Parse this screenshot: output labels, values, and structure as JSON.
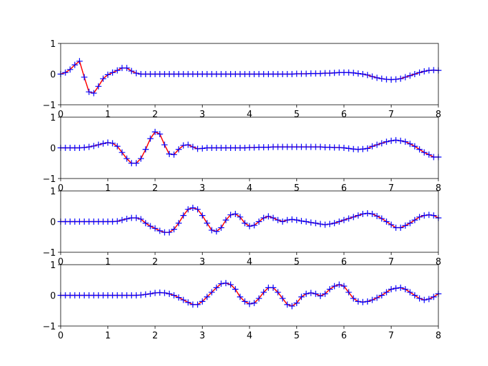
{
  "chart_data": [
    {
      "type": "line",
      "x": [
        0,
        0.1,
        0.2,
        0.3,
        0.4,
        0.5,
        0.6,
        0.7,
        0.8,
        0.9,
        1,
        1.1,
        1.2,
        1.3,
        1.4,
        1.5,
        1.6,
        1.7,
        1.8,
        1.9,
        2,
        2.1,
        2.2,
        2.3,
        2.4,
        2.5,
        2.6,
        2.7,
        2.8,
        2.9,
        3,
        3.1,
        3.2,
        3.3,
        3.4,
        3.5,
        3.6,
        3.7,
        3.8,
        3.9,
        4,
        4.1,
        4.2,
        4.3,
        4.4,
        4.5,
        4.6,
        4.7,
        4.8,
        4.9,
        5,
        5.1,
        5.2,
        5.3,
        5.4,
        5.5,
        5.6,
        5.7,
        5.8,
        5.9,
        6,
        6.1,
        6.2,
        6.3,
        6.4,
        6.5,
        6.6,
        6.7,
        6.8,
        6.9,
        7,
        7.1,
        7.2,
        7.3,
        7.4,
        7.5,
        7.6,
        7.7,
        7.8,
        7.9,
        8
      ],
      "series": [
        {
          "color": "red",
          "marker_color": "blue",
          "marker": "+",
          "values": [
            0,
            0.05,
            0.15,
            0.3,
            0.42,
            -0.1,
            -0.58,
            -0.62,
            -0.4,
            -0.15,
            -0.02,
            0.05,
            0.12,
            0.2,
            0.2,
            0.1,
            0.03,
            0,
            0,
            0,
            0,
            0,
            0,
            0,
            0,
            0,
            0,
            0,
            0,
            0,
            0,
            0,
            0,
            0,
            0,
            0,
            0,
            0,
            0,
            0,
            0,
            0,
            0,
            0,
            0,
            0,
            0,
            0,
            0,
            0,
            0.01,
            0.01,
            0.01,
            0.02,
            0.02,
            0.02,
            0.03,
            0.03,
            0.04,
            0.05,
            0.05,
            0.05,
            0.04,
            0.02,
            0,
            -0.03,
            -0.08,
            -0.12,
            -0.15,
            -0.17,
            -0.18,
            -0.17,
            -0.15,
            -0.1,
            -0.05,
            0,
            0.05,
            0.09,
            0.12,
            0.13,
            0.12
          ]
        }
      ],
      "xlim": [
        0,
        8
      ],
      "ylim": [
        -1,
        1
      ],
      "xticks": [
        0,
        1,
        2,
        3,
        4,
        5,
        6,
        7,
        8
      ],
      "yticks": [
        {
          "value": -1,
          "label": "−1"
        },
        0,
        1
      ]
    },
    {
      "type": "line",
      "x": [
        0,
        0.1,
        0.2,
        0.3,
        0.4,
        0.5,
        0.6,
        0.7,
        0.8,
        0.9,
        1,
        1.1,
        1.2,
        1.3,
        1.4,
        1.5,
        1.6,
        1.7,
        1.8,
        1.9,
        2,
        2.1,
        2.2,
        2.3,
        2.4,
        2.5,
        2.6,
        2.7,
        2.8,
        2.9,
        3,
        3.1,
        3.2,
        3.3,
        3.4,
        3.5,
        3.6,
        3.7,
        3.8,
        3.9,
        4,
        4.1,
        4.2,
        4.3,
        4.4,
        4.5,
        4.6,
        4.7,
        4.8,
        4.9,
        5,
        5.1,
        5.2,
        5.3,
        5.4,
        5.5,
        5.6,
        5.7,
        5.8,
        5.9,
        6,
        6.1,
        6.2,
        6.3,
        6.4,
        6.5,
        6.6,
        6.7,
        6.8,
        6.9,
        7,
        7.1,
        7.2,
        7.3,
        7.4,
        7.5,
        7.6,
        7.7,
        7.8,
        7.9,
        8
      ],
      "series": [
        {
          "color": "red",
          "marker_color": "blue",
          "marker": "+",
          "values": [
            0,
            0,
            0,
            0,
            0,
            0.01,
            0.03,
            0.06,
            0.1,
            0.14,
            0.17,
            0.15,
            0.05,
            -0.15,
            -0.35,
            -0.5,
            -0.5,
            -0.35,
            -0.05,
            0.3,
            0.52,
            0.45,
            0.1,
            -0.2,
            -0.22,
            -0.05,
            0.08,
            0.1,
            0.03,
            -0.03,
            -0.02,
            0,
            0,
            0,
            0,
            0,
            0,
            0,
            0,
            0,
            0.01,
            0.01,
            0.02,
            0.02,
            0.02,
            0.03,
            0.03,
            0.03,
            0.03,
            0.03,
            0.03,
            0.03,
            0.03,
            0.03,
            0.03,
            0.03,
            0.02,
            0.02,
            0.01,
            0.01,
            0,
            -0.02,
            -0.04,
            -0.05,
            -0.04,
            -0.02,
            0.05,
            0.1,
            0.15,
            0.2,
            0.23,
            0.25,
            0.23,
            0.2,
            0.13,
            0.05,
            -0.05,
            -0.15,
            -0.22,
            -0.3,
            -0.3
          ]
        }
      ],
      "xlim": [
        0,
        8
      ],
      "ylim": [
        -1,
        1
      ],
      "xticks": [
        0,
        1,
        2,
        3,
        4,
        5,
        6,
        7,
        8
      ],
      "yticks": [
        {
          "value": -1,
          "label": "−1"
        },
        0,
        1
      ]
    },
    {
      "type": "line",
      "x": [
        0,
        0.1,
        0.2,
        0.3,
        0.4,
        0.5,
        0.6,
        0.7,
        0.8,
        0.9,
        1,
        1.1,
        1.2,
        1.3,
        1.4,
        1.5,
        1.6,
        1.7,
        1.8,
        1.9,
        2,
        2.1,
        2.2,
        2.3,
        2.4,
        2.5,
        2.6,
        2.7,
        2.8,
        2.9,
        3,
        3.1,
        3.2,
        3.3,
        3.4,
        3.5,
        3.6,
        3.7,
        3.8,
        3.9,
        4,
        4.1,
        4.2,
        4.3,
        4.4,
        4.5,
        4.6,
        4.7,
        4.8,
        4.9,
        5,
        5.1,
        5.2,
        5.3,
        5.4,
        5.5,
        5.6,
        5.7,
        5.8,
        5.9,
        6,
        6.1,
        6.2,
        6.3,
        6.4,
        6.5,
        6.6,
        6.7,
        6.8,
        6.9,
        7,
        7.1,
        7.2,
        7.3,
        7.4,
        7.5,
        7.6,
        7.7,
        7.8,
        7.9,
        8
      ],
      "series": [
        {
          "color": "red",
          "marker_color": "blue",
          "marker": "+",
          "values": [
            0,
            0,
            0,
            0,
            0,
            0,
            0,
            0,
            0,
            0,
            0,
            0,
            0.01,
            0.05,
            0.09,
            0.12,
            0.12,
            0.08,
            -0.05,
            -0.15,
            -0.22,
            -0.3,
            -0.35,
            -0.35,
            -0.25,
            -0.05,
            0.2,
            0.4,
            0.45,
            0.4,
            0.2,
            -0.05,
            -0.28,
            -0.32,
            -0.2,
            0.05,
            0.22,
            0.25,
            0.15,
            -0.05,
            -0.15,
            -0.12,
            0,
            0.12,
            0.17,
            0.12,
            0.05,
            0,
            0.05,
            0.07,
            0.05,
            0.02,
            0,
            -0.03,
            -0.05,
            -0.08,
            -0.1,
            -0.08,
            -0.05,
            0,
            0.05,
            0.1,
            0.15,
            0.2,
            0.25,
            0.27,
            0.25,
            0.18,
            0.1,
            0,
            -0.1,
            -0.2,
            -0.2,
            -0.13,
            -0.05,
            0.05,
            0.15,
            0.2,
            0.22,
            0.2,
            0.12
          ]
        }
      ],
      "xlim": [
        0,
        8
      ],
      "ylim": [
        -1,
        1
      ],
      "xticks": [
        0,
        1,
        2,
        3,
        4,
        5,
        6,
        7,
        8
      ],
      "yticks": [
        {
          "value": -1,
          "label": "−1"
        },
        0,
        1
      ]
    },
    {
      "type": "line",
      "x": [
        0,
        0.1,
        0.2,
        0.3,
        0.4,
        0.5,
        0.6,
        0.7,
        0.8,
        0.9,
        1,
        1.1,
        1.2,
        1.3,
        1.4,
        1.5,
        1.6,
        1.7,
        1.8,
        1.9,
        2,
        2.1,
        2.2,
        2.3,
        2.4,
        2.5,
        2.6,
        2.7,
        2.8,
        2.9,
        3,
        3.1,
        3.2,
        3.3,
        3.4,
        3.5,
        3.6,
        3.7,
        3.8,
        3.9,
        4,
        4.1,
        4.2,
        4.3,
        4.4,
        4.5,
        4.6,
        4.7,
        4.8,
        4.9,
        5,
        5.1,
        5.2,
        5.3,
        5.4,
        5.5,
        5.6,
        5.7,
        5.8,
        5.9,
        6,
        6.1,
        6.2,
        6.3,
        6.4,
        6.5,
        6.6,
        6.7,
        6.8,
        6.9,
        7,
        7.1,
        7.2,
        7.3,
        7.4,
        7.5,
        7.6,
        7.7,
        7.8,
        7.9,
        8
      ],
      "series": [
        {
          "color": "red",
          "marker_color": "blue",
          "marker": "+",
          "values": [
            0,
            0,
            0,
            0,
            0,
            0,
            0,
            0,
            0,
            0,
            0,
            0,
            0,
            0,
            0,
            0,
            0,
            0.01,
            0.03,
            0.05,
            0.08,
            0.09,
            0.08,
            0.05,
            0,
            -0.07,
            -0.15,
            -0.23,
            -0.3,
            -0.3,
            -0.2,
            -0.05,
            0.1,
            0.25,
            0.38,
            0.4,
            0.35,
            0.2,
            -0.05,
            -0.2,
            -0.28,
            -0.25,
            -0.1,
            0.1,
            0.25,
            0.25,
            0.1,
            -0.1,
            -0.3,
            -0.35,
            -0.25,
            -0.05,
            0.05,
            0.08,
            0.05,
            -0.02,
            0.05,
            0.2,
            0.3,
            0.35,
            0.3,
            0.1,
            -0.1,
            -0.2,
            -0.22,
            -0.2,
            -0.15,
            -0.08,
            0,
            0.1,
            0.2,
            0.23,
            0.25,
            0.2,
            0.1,
            0,
            -0.1,
            -0.15,
            -0.12,
            -0.05,
            0.05
          ]
        }
      ],
      "xlim": [
        0,
        8
      ],
      "ylim": [
        -1,
        1
      ],
      "xticks": [
        0,
        1,
        2,
        3,
        4,
        5,
        6,
        7,
        8
      ],
      "yticks": [
        {
          "value": -1,
          "label": "−1"
        },
        0,
        1
      ]
    }
  ]
}
